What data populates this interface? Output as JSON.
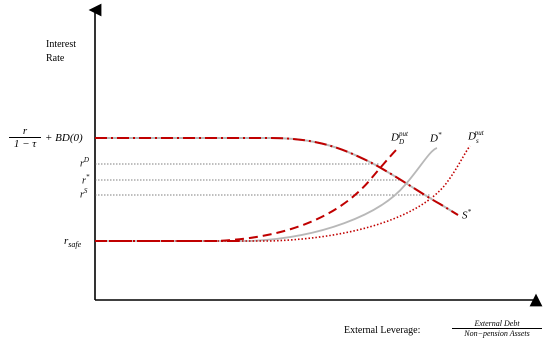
{
  "axes": {
    "y_label_line1": "Interest",
    "y_label_line2": "Rate",
    "x_label_prefix": "External Leverage:",
    "x_fraction_num": "External Debt",
    "x_fraction_den": "Non−pension Assets"
  },
  "y_ticks": {
    "top_num": "r",
    "top_den": "1 − τ",
    "top_suffix": "+ BD(0)",
    "rD": "r",
    "rD_sup": "D",
    "rstar": "r",
    "rstar_sup": "*",
    "rS": "r",
    "rS_sup": "S",
    "rsafe": "r",
    "rsafe_sub": "safe"
  },
  "curve_labels": {
    "DDput_base": "D",
    "DDput_sub": "D",
    "DDput_sup": "put",
    "Dstar_base": "D",
    "Dstar_sup": "*",
    "DSput_base": "D",
    "DSput_sub": "s",
    "DSput_sup": "put",
    "Sstar_base": "S",
    "Sstar_sup": "*"
  },
  "colors": {
    "red": "#c00000",
    "gray": "#b8b8b8",
    "axis": "#000000",
    "guide": "#555555"
  }
}
